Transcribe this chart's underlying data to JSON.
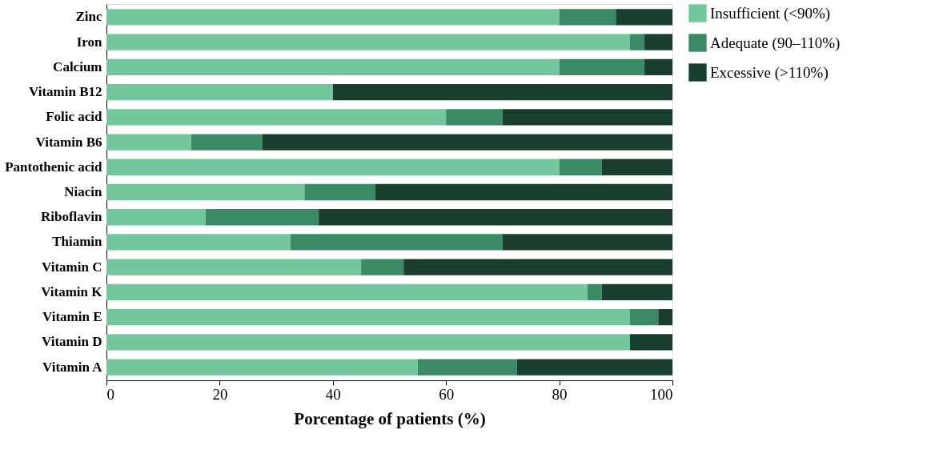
{
  "chart_data": {
    "type": "bar",
    "orientation": "horizontal",
    "stacked": true,
    "xlabel": "Porcentage of patients (%)",
    "categories": [
      "Zinc",
      "Iron",
      "Calcium",
      "Vitamin B12",
      "Folic acid",
      "Vitamin B6",
      "Pantothenic acid",
      "Niacin",
      "Riboflavin",
      "Thiamin",
      "Vitamin C",
      "Vitamin K",
      "Vitamin E",
      "Vitamin D",
      "Vitamin A"
    ],
    "series": [
      {
        "name": "Insufficient (<90%)",
        "color": "#74c69d",
        "values": [
          80,
          92.5,
          80,
          40,
          60,
          15,
          80,
          35,
          17.5,
          32.5,
          45,
          85,
          92.5,
          92.5,
          55
        ]
      },
      {
        "name": "Adequate (90–110%)",
        "color": "#3a8a66",
        "values": [
          10,
          2.5,
          15,
          0,
          10,
          12.5,
          7.5,
          12.5,
          20,
          37.5,
          7.5,
          2.5,
          5,
          0,
          17.5
        ]
      },
      {
        "name": "Excessive (>110%)",
        "color": "#1b3f2f",
        "values": [
          10,
          5,
          5,
          60,
          30,
          72.5,
          12.5,
          52.5,
          62.5,
          30,
          47.5,
          12.5,
          2.5,
          7.5,
          27.5
        ]
      }
    ],
    "xlim": [
      0,
      100
    ],
    "xticks": [
      0,
      20,
      40,
      60,
      80,
      100
    ],
    "grid": false,
    "legend": "top right"
  }
}
